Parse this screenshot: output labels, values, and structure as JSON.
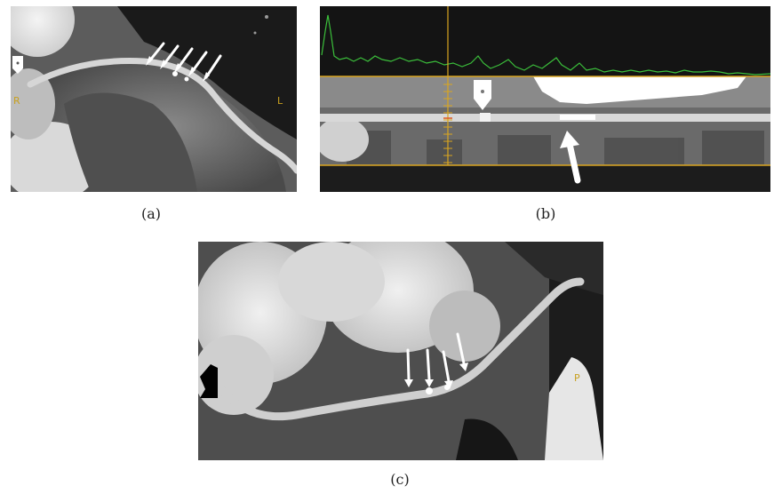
{
  "figure": {
    "panels": [
      {
        "id": "a",
        "caption": "(a)",
        "orientation_left": "R",
        "orientation_right": "L"
      },
      {
        "id": "b",
        "caption": "(b)"
      },
      {
        "id": "c",
        "caption": "(c)",
        "orientation_right": "P"
      }
    ]
  },
  "colors": {
    "profile_line": "#3bbf3b",
    "marker_line": "#d9a520",
    "arrow": "#ffffff",
    "arrowhead_black": "#000000"
  }
}
